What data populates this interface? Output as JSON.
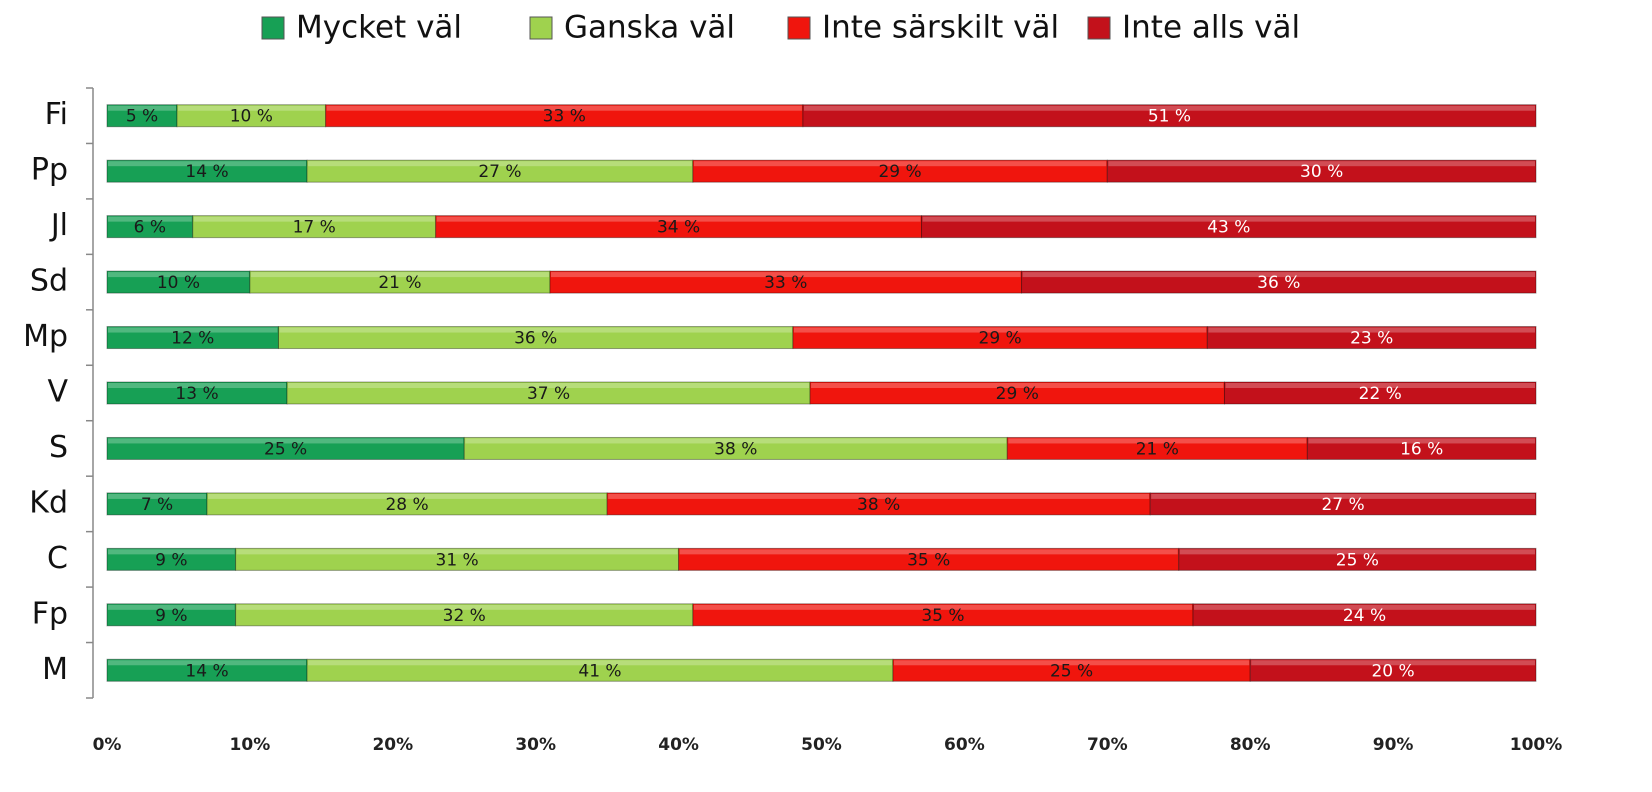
{
  "chart_data": {
    "type": "stacked-barh",
    "categories": [
      "Fi",
      "Pp",
      "Jl",
      "Sd",
      "Mp",
      "V",
      "S",
      "Kd",
      "C",
      "Fp",
      "M"
    ],
    "series": [
      {
        "name": "Mycket väl",
        "color": "#17a055",
        "label_color": "#1a1a1a",
        "values": [
          4.9,
          14,
          6,
          10,
          12,
          12.6,
          25,
          7,
          9,
          9,
          14
        ],
        "value_labels": [
          "5 %",
          "14 %",
          "6 %",
          "10 %",
          "12 %",
          "13 %",
          "25 %",
          "7 %",
          "9 %",
          "9 %",
          "14 %"
        ]
      },
      {
        "name": "Ganska väl",
        "color": "#9fd24e",
        "label_color": "#1a1a1a",
        "values": [
          10.4,
          27,
          17,
          21,
          36,
          36.6,
          38,
          28,
          31,
          32,
          41
        ],
        "value_labels": [
          "10 %",
          "27 %",
          "17 %",
          "21 %",
          "36 %",
          "37 %",
          "38 %",
          "28 %",
          "31 %",
          "32 %",
          "41 %"
        ]
      },
      {
        "name": "Inte särskilt väl",
        "color": "#f0150d",
        "label_color": "#1a1a1a",
        "values": [
          33.4,
          29,
          34,
          33,
          29,
          29,
          21,
          38,
          35,
          35,
          25
        ],
        "value_labels": [
          "33 %",
          "29 %",
          "34 %",
          "33 %",
          "29 %",
          "29 %",
          "21 %",
          "38 %",
          "35 %",
          "35 %",
          "25 %"
        ]
      },
      {
        "name": "Inte alls väl",
        "color": "#c3111b",
        "label_color": "#ffffff",
        "values": [
          51.3,
          30,
          43,
          36,
          23,
          21.8,
          16,
          27,
          25,
          24,
          20
        ],
        "value_labels": [
          "51 %",
          "30 %",
          "43 %",
          "36 %",
          "23 %",
          "22 %",
          "16 %",
          "27 %",
          "25 %",
          "24 %",
          "20 %"
        ]
      }
    ],
    "xlim": [
      0,
      100
    ],
    "xticks": [
      {
        "value": 0,
        "label": "0%"
      },
      {
        "value": 10,
        "label": "10%"
      },
      {
        "value": 20,
        "label": "20%"
      },
      {
        "value": 30,
        "label": "30%"
      },
      {
        "value": 40,
        "label": "40%"
      },
      {
        "value": 50,
        "label": "50%"
      },
      {
        "value": 60,
        "label": "60%"
      },
      {
        "value": 70,
        "label": "70%"
      },
      {
        "value": 80,
        "label": "80%"
      },
      {
        "value": 90,
        "label": "90%"
      },
      {
        "value": 100,
        "label": "100%"
      }
    ],
    "legend": "top"
  }
}
